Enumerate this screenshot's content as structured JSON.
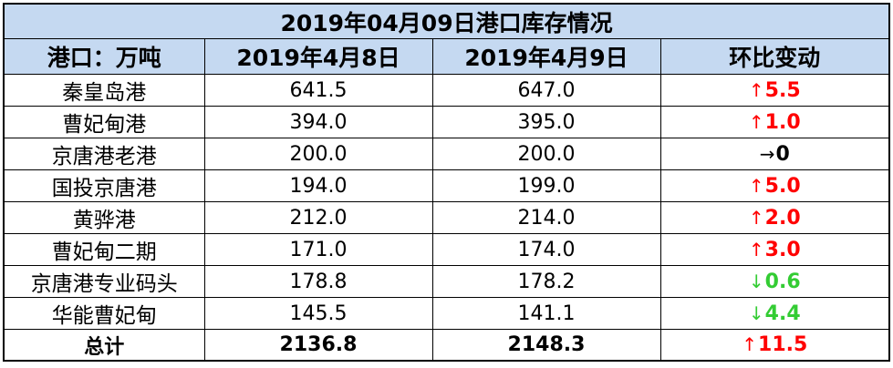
{
  "title": "2019年04月09日港口库存情况",
  "headers": {
    "port": "港口：万吨",
    "date1": "2019年4月8日",
    "date2": "2019年4月9日",
    "change": "环比变动"
  },
  "rows": [
    {
      "port": "秦皇岛港",
      "v1": "641.5",
      "v2": "647.0",
      "arrow": "↑",
      "change": "5.5",
      "direction": "up"
    },
    {
      "port": "曹妃甸港",
      "v1": "394.0",
      "v2": "395.0",
      "arrow": "↑",
      "change": "1.0",
      "direction": "up"
    },
    {
      "port": "京唐港老港",
      "v1": "200.0",
      "v2": "200.0",
      "arrow": "→",
      "change": "0",
      "direction": "flat"
    },
    {
      "port": "国投京唐港",
      "v1": "194.0",
      "v2": "199.0",
      "arrow": "↑",
      "change": "5.0",
      "direction": "up"
    },
    {
      "port": "黄骅港",
      "v1": "212.0",
      "v2": "214.0",
      "arrow": "↑",
      "change": "2.0",
      "direction": "up"
    },
    {
      "port": "曹妃甸二期",
      "v1": "171.0",
      "v2": "174.0",
      "arrow": "↑",
      "change": "3.0",
      "direction": "up"
    },
    {
      "port": "京唐港专业码头",
      "v1": "178.8",
      "v2": "178.2",
      "arrow": "↓",
      "change": "0.6",
      "direction": "down"
    },
    {
      "port": "华能曹妃甸",
      "v1": "145.5",
      "v2": "141.1",
      "arrow": "↓",
      "change": "4.4",
      "direction": "down"
    }
  ],
  "total": {
    "label": "总计",
    "v1": "2136.8",
    "v2": "2148.3",
    "arrow": "↑",
    "change": "11.5",
    "direction": "up"
  },
  "colors": {
    "header_bg": "#c5d9f1",
    "up": "#ff0000",
    "down": "#33cc33",
    "flat": "#000000"
  }
}
